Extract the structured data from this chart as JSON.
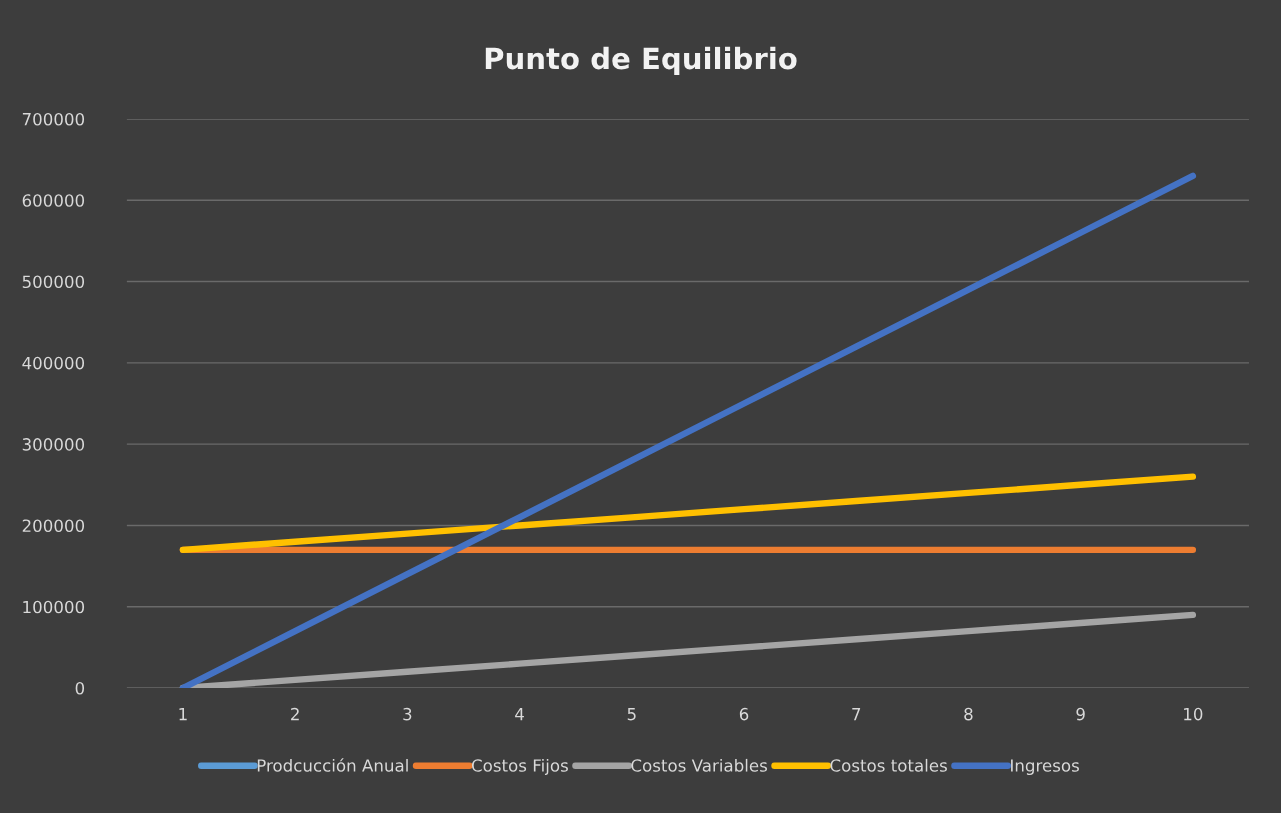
{
  "chart_data": {
    "type": "line",
    "title": "Punto de Equilibrio",
    "categories": [
      "1",
      "2",
      "3",
      "4",
      "5",
      "6",
      "7",
      "8",
      "9",
      "10"
    ],
    "series": [
      {
        "name": "Prodcucción Anual",
        "color": "#5b9bd5",
        "values": [
          null,
          null,
          null,
          null,
          null,
          null,
          null,
          null,
          null,
          null
        ]
      },
      {
        "name": "Costos Fijos",
        "color": "#ed7d31",
        "values": [
          170000,
          170000,
          170000,
          170000,
          170000,
          170000,
          170000,
          170000,
          170000,
          170000
        ]
      },
      {
        "name": "Costos Variables",
        "color": "#a5a5a5",
        "values": [
          0,
          10000,
          20000,
          30000,
          40000,
          50000,
          60000,
          70000,
          80000,
          90000
        ]
      },
      {
        "name": "Costos totales",
        "color": "#ffc000",
        "values": [
          170000,
          180000,
          190000,
          200000,
          210000,
          220000,
          230000,
          240000,
          250000,
          260000
        ]
      },
      {
        "name": "Ingresos",
        "color": "#4472c4",
        "values": [
          0,
          70000,
          140000,
          210000,
          280000,
          350000,
          420000,
          490000,
          560000,
          630000
        ]
      }
    ],
    "ylim": [
      0,
      700000
    ],
    "yticks": [
      0,
      100000,
      200000,
      300000,
      400000,
      500000,
      600000,
      700000
    ],
    "grid": "y",
    "legend": "bottom",
    "line_style": "solid"
  }
}
